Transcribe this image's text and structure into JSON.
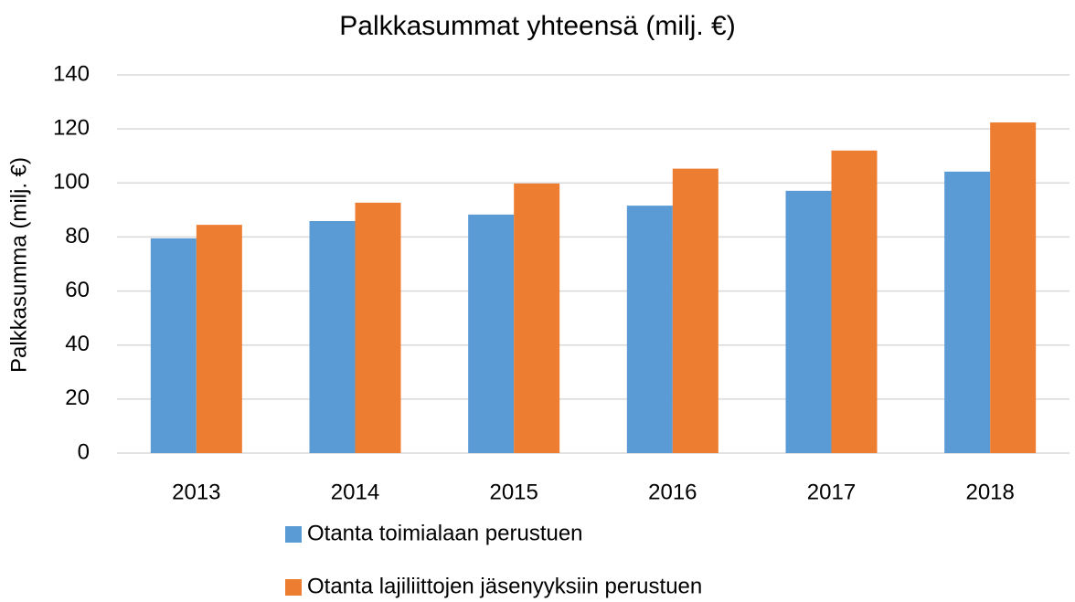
{
  "chart_data": {
    "type": "bar",
    "title": "Palkkasummat yhteensä (milj. €)",
    "y_label": "Palkkasumma (milj. €)",
    "categories": [
      "2013",
      "2014",
      "2015",
      "2016",
      "2017",
      "2018"
    ],
    "series": [
      {
        "name": "Otanta toimialaan perustuen",
        "color": "#5b9bd5",
        "values": [
          79.5,
          85.9,
          88.3,
          91.6,
          97.1,
          104.2
        ]
      },
      {
        "name": "Otanta lajiliittojen jäsenyyksiin perustuen",
        "color": "#ed7d31",
        "values": [
          84.5,
          92.7,
          99.8,
          105.3,
          112.0,
          122.4
        ]
      }
    ],
    "ylim": [
      0,
      140
    ],
    "yticks": [
      0,
      20,
      40,
      60,
      80,
      100,
      120,
      140
    ],
    "grid": true,
    "legend": "bottom"
  }
}
